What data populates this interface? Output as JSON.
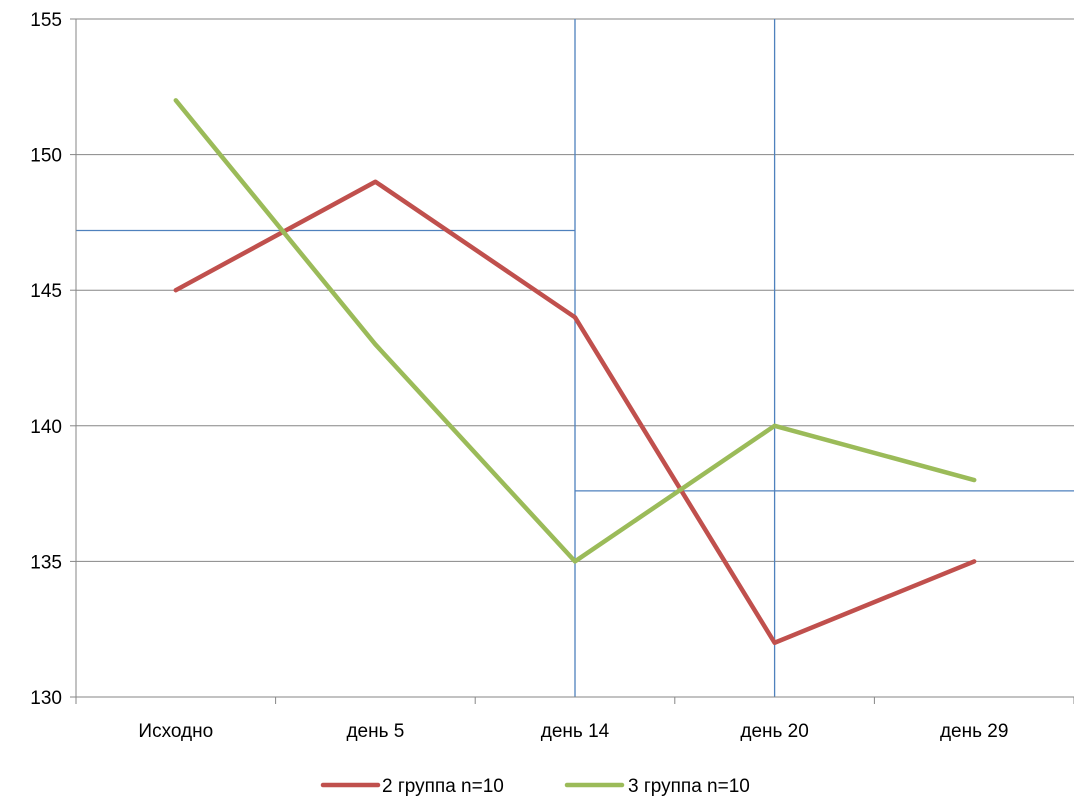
{
  "chart_data": {
    "type": "line",
    "title": "",
    "xlabel": "",
    "ylabel": "",
    "categories": [
      "Исходно",
      "день 5",
      "день 14",
      "день 20",
      "день 29"
    ],
    "ylim": [
      130,
      155
    ],
    "yticks": [
      "130",
      "135",
      "140",
      "145",
      "150",
      "155"
    ],
    "grid": "horizontal",
    "legend_position": "bottom",
    "series": [
      {
        "name": "2 группа n=10",
        "color": "#c0504d",
        "values": [
          145,
          149,
          144,
          132,
          135
        ]
      },
      {
        "name": "3 группа n=10",
        "color": "#9bbb59",
        "values": [
          152,
          143,
          135,
          140,
          138
        ]
      }
    ],
    "reference_lines": {
      "color": "#4f81bd",
      "vertical_at_categories": [
        "день 14",
        "день 20"
      ],
      "horizontal_segments": [
        {
          "y": 147.2,
          "from_category": "Исходно",
          "to_category": "день 14"
        },
        {
          "y": 137.6,
          "from_category": "день 14",
          "to_category": "день 29"
        }
      ]
    }
  }
}
